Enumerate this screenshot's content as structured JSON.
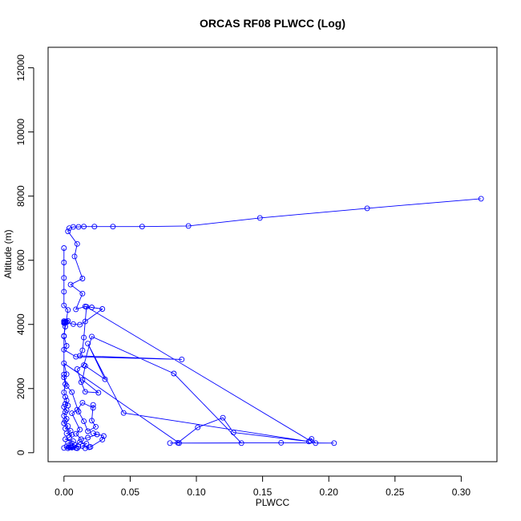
{
  "chart_data": {
    "type": "line",
    "title": "ORCAS RF08 PLWCC (Log)",
    "xlabel": "PLWCC",
    "ylabel": "Altitude (m)",
    "xlim": [
      -0.012,
      0.327
    ],
    "ylim": [
      -280,
      12640
    ],
    "x_ticks": [
      0.0,
      0.05,
      0.1,
      0.15,
      0.2,
      0.25,
      0.3
    ],
    "x_tick_labels": [
      "0.00",
      "0.05",
      "0.10",
      "0.15",
      "0.20",
      "0.25",
      "0.30"
    ],
    "y_ticks": [
      0,
      2000,
      4000,
      6000,
      8000,
      10000,
      12000
    ],
    "y_tick_labels": [
      "0",
      "2000",
      "4000",
      "6000",
      "8000",
      "10000",
      "12000"
    ],
    "grid": false,
    "legend": "none",
    "marker": "open-circle",
    "series_color": "#0000FF",
    "series": [
      {
        "points": [
          [
            0.315,
            7920
          ],
          [
            0.229,
            7620
          ],
          [
            0.148,
            7320
          ],
          [
            0.094,
            7070
          ],
          [
            0.059,
            7050
          ],
          [
            0.037,
            7050
          ],
          [
            0.023,
            7050
          ],
          [
            0.015,
            7050
          ],
          [
            0.011,
            7040
          ],
          [
            0.007,
            7040
          ],
          [
            0.004,
            7000
          ],
          [
            0.003,
            6900
          ],
          [
            0.01,
            6510
          ],
          [
            0.008,
            6120
          ],
          [
            0.014,
            5430
          ],
          [
            0.005,
            5240
          ],
          [
            0.014,
            4960
          ],
          [
            0.009,
            4470
          ],
          [
            0.016,
            4560
          ],
          [
            0.021,
            4530
          ],
          [
            0.029,
            4480
          ],
          [
            0.016,
            4090
          ],
          [
            0.012,
            3990
          ],
          [
            0.007,
            4010
          ],
          [
            0.001,
            4060
          ],
          [
            0.0,
            4070
          ],
          [
            0.002,
            4080
          ],
          [
            0.003,
            4110
          ],
          [
            0.0,
            4100
          ],
          [
            0.001,
            4050
          ],
          [
            0.0,
            4040
          ],
          [
            0.002,
            4070
          ],
          [
            0.001,
            4090
          ],
          [
            0.0,
            3630
          ],
          [
            0.002,
            3330
          ],
          [
            0.0,
            3210
          ],
          [
            0.009,
            2990
          ],
          [
            0.089,
            2910
          ],
          [
            0.012,
            3020
          ],
          [
            0.014,
            3190
          ],
          [
            0.015,
            3590
          ],
          [
            0.017,
            4550
          ],
          [
            0.186,
            370
          ],
          [
            0.187,
            430
          ],
          [
            0.19,
            300
          ],
          [
            0.204,
            300
          ],
          [
            0.164,
            310
          ],
          [
            0.08,
            300
          ],
          [
            0.086,
            310
          ],
          [
            0.101,
            790
          ],
          [
            0.12,
            1090
          ],
          [
            0.128,
            630
          ],
          [
            0.185,
            350
          ],
          [
            0.045,
            1240
          ],
          [
            0.018,
            3400
          ],
          [
            0.031,
            2290
          ],
          [
            0.016,
            2710
          ],
          [
            0.014,
            2270
          ],
          [
            0.026,
            1870
          ],
          [
            0.016,
            1900
          ],
          [
            0.013,
            2200
          ],
          [
            0.01,
            2610
          ],
          [
            0.015,
            2730
          ],
          [
            0.021,
            3620
          ],
          [
            0.083,
            2470
          ],
          [
            0.134,
            300
          ],
          [
            0.087,
            300
          ],
          [
            0.0,
            2790
          ],
          [
            0.002,
            2450
          ],
          [
            0.0,
            2350
          ],
          [
            0.001,
            2140
          ],
          [
            0.0,
            1880
          ],
          [
            0.001,
            1740
          ],
          [
            0.002,
            1630
          ],
          [
            0.001,
            1520
          ],
          [
            0.003,
            1470
          ],
          [
            0.0,
            1430
          ],
          [
            0.002,
            1330
          ],
          [
            0.001,
            1270
          ],
          [
            0.0,
            1150
          ],
          [
            0.002,
            1060
          ],
          [
            0.001,
            1000
          ],
          [
            0.0,
            920
          ],
          [
            0.003,
            830
          ],
          [
            0.001,
            750
          ],
          [
            0.005,
            680
          ],
          [
            0.002,
            600
          ],
          [
            0.006,
            560
          ],
          [
            0.004,
            480
          ],
          [
            0.001,
            420
          ],
          [
            0.007,
            360
          ],
          [
            0.003,
            300
          ],
          [
            0.008,
            250
          ],
          [
            0.002,
            200
          ],
          [
            0.005,
            170
          ],
          [
            0.0,
            150
          ],
          [
            0.009,
            150
          ],
          [
            0.004,
            170
          ],
          [
            0.011,
            190
          ],
          [
            0.006,
            160
          ],
          [
            0.01,
            140
          ],
          [
            0.003,
            140
          ],
          [
            0.007,
            180
          ],
          [
            0.012,
            330
          ],
          [
            0.017,
            280
          ],
          [
            0.014,
            210
          ],
          [
            0.019,
            170
          ],
          [
            0.016,
            140
          ],
          [
            0.02,
            180
          ],
          [
            0.029,
            410
          ],
          [
            0.03,
            520
          ],
          [
            0.022,
            610
          ],
          [
            0.025,
            570
          ],
          [
            0.018,
            470
          ],
          [
            0.013,
            420
          ],
          [
            0.009,
            590
          ],
          [
            0.012,
            720
          ],
          [
            0.006,
            1230
          ],
          [
            0.01,
            1340
          ],
          [
            0.014,
            1560
          ],
          [
            0.022,
            1400
          ],
          [
            0.022,
            1490
          ],
          [
            0.021,
            1000
          ],
          [
            0.024,
            810
          ],
          [
            0.018,
            670
          ],
          [
            0.015,
            980
          ],
          [
            0.011,
            1280
          ],
          [
            0.006,
            1890
          ],
          [
            0.002,
            2080
          ],
          [
            0.0,
            2440
          ],
          [
            0.0,
            3640
          ],
          [
            0.001,
            3930
          ],
          [
            0.003,
            4450
          ],
          [
            0.0,
            4590
          ],
          [
            0.0,
            5020
          ],
          [
            0.0,
            5450
          ],
          [
            0.0,
            5930
          ],
          [
            0.0,
            6380
          ]
        ]
      }
    ]
  }
}
